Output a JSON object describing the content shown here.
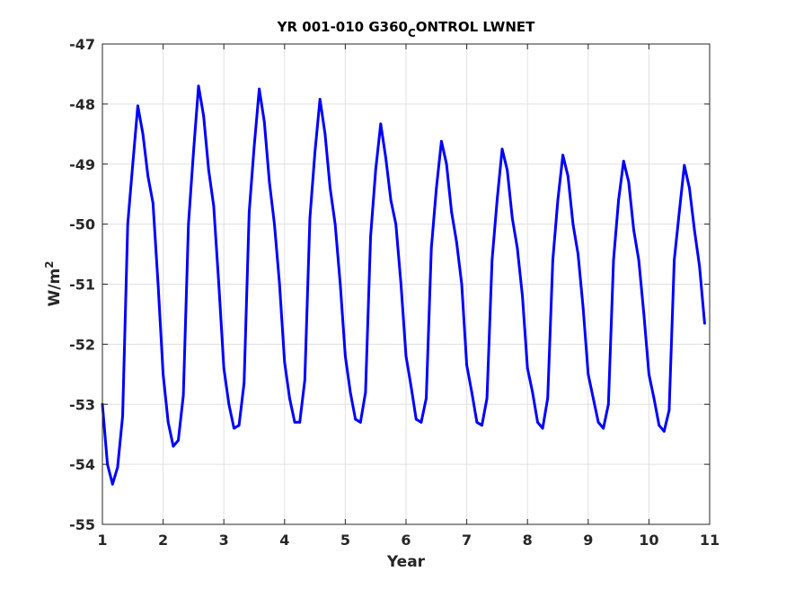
{
  "chart_data": {
    "type": "line",
    "title_main": "YR 001-010 G360",
    "title_sub": "C",
    "title_rest": "ONTROL LWNET",
    "xlabel": "Year",
    "ylabel_base": "W/m",
    "ylabel_sup": "2",
    "xlim": [
      1,
      11
    ],
    "ylim": [
      -55,
      -47
    ],
    "grid": true,
    "xticks": [
      1,
      2,
      3,
      4,
      5,
      6,
      7,
      8,
      9,
      10,
      11
    ],
    "xtick_labels": [
      "1",
      "2",
      "3",
      "4",
      "5",
      "6",
      "7",
      "8",
      "9",
      "10",
      "11"
    ],
    "yticks": [
      -55,
      -54,
      -53,
      -52,
      -51,
      -50,
      -49,
      -48,
      -47
    ],
    "ytick_labels": [
      "-55",
      "-54",
      "-53",
      "-52",
      "-51",
      "-50",
      "-49",
      "-48",
      "-47"
    ],
    "line_color": "#0000ff",
    "grid_color": "#e0e0e0",
    "series": [
      {
        "x": [
          1.0,
          1.083,
          1.167,
          1.25,
          1.333,
          1.417,
          1.5,
          1.583,
          1.667,
          1.75,
          1.833,
          1.917,
          2.0,
          2.083,
          2.167,
          2.25,
          2.333,
          2.417,
          2.5,
          2.583,
          2.667,
          2.75,
          2.833,
          2.917,
          3.0,
          3.083,
          3.167,
          3.25,
          3.333,
          3.417,
          3.5,
          3.583,
          3.667,
          3.75,
          3.833,
          3.917,
          4.0,
          4.083,
          4.167,
          4.25,
          4.333,
          4.417,
          4.5,
          4.583,
          4.667,
          4.75,
          4.833,
          4.917,
          5.0,
          5.083,
          5.167,
          5.25,
          5.333,
          5.417,
          5.5,
          5.583,
          5.667,
          5.75,
          5.833,
          5.917,
          6.0,
          6.083,
          6.167,
          6.25,
          6.333,
          6.417,
          6.5,
          6.583,
          6.667,
          6.75,
          6.833,
          6.917,
          7.0,
          7.083,
          7.167,
          7.25,
          7.333,
          7.417,
          7.5,
          7.583,
          7.667,
          7.75,
          7.833,
          7.917,
          8.0,
          8.083,
          8.167,
          8.25,
          8.333,
          8.417,
          8.5,
          8.583,
          8.667,
          8.75,
          8.833,
          8.917,
          9.0,
          9.083,
          9.167,
          9.25,
          9.333,
          9.417,
          9.5,
          9.583,
          9.667,
          9.75,
          9.833,
          9.917,
          10.0,
          10.083,
          10.167,
          10.25,
          10.333,
          10.417,
          10.5,
          10.583,
          10.667,
          10.75,
          10.833,
          10.917
        ],
        "y": [
          -53.0,
          -54.0,
          -54.33,
          -54.05,
          -53.2,
          -50.0,
          -49.0,
          -48.03,
          -48.5,
          -49.2,
          -49.65,
          -51.0,
          -52.5,
          -53.3,
          -53.7,
          -53.6,
          -52.85,
          -50.0,
          -48.8,
          -47.7,
          -48.2,
          -49.1,
          -49.7,
          -51.0,
          -52.4,
          -53.0,
          -53.4,
          -53.35,
          -52.65,
          -49.8,
          -48.7,
          -47.75,
          -48.3,
          -49.3,
          -50.0,
          -51.0,
          -52.3,
          -52.9,
          -53.3,
          -53.3,
          -52.6,
          -49.9,
          -48.8,
          -47.92,
          -48.5,
          -49.4,
          -50.0,
          -51.0,
          -52.2,
          -52.8,
          -53.25,
          -53.3,
          -52.8,
          -50.2,
          -49.1,
          -48.33,
          -48.9,
          -49.6,
          -50.0,
          -51.0,
          -52.2,
          -52.7,
          -53.25,
          -53.3,
          -52.9,
          -50.4,
          -49.4,
          -48.62,
          -49.0,
          -49.8,
          -50.3,
          -51.0,
          -52.35,
          -52.8,
          -53.3,
          -53.35,
          -52.9,
          -50.6,
          -49.6,
          -48.75,
          -49.1,
          -49.9,
          -50.4,
          -51.2,
          -52.4,
          -52.8,
          -53.3,
          -53.4,
          -52.9,
          -50.6,
          -49.6,
          -48.85,
          -49.2,
          -50.0,
          -50.5,
          -51.4,
          -52.5,
          -52.9,
          -53.3,
          -53.4,
          -53.0,
          -50.6,
          -49.6,
          -48.95,
          -49.3,
          -50.1,
          -50.6,
          -51.5,
          -52.5,
          -52.9,
          -53.35,
          -53.45,
          -53.1,
          -50.6,
          -49.8,
          -49.02,
          -49.4,
          -50.1,
          -50.7,
          -51.65
        ]
      }
    ]
  }
}
